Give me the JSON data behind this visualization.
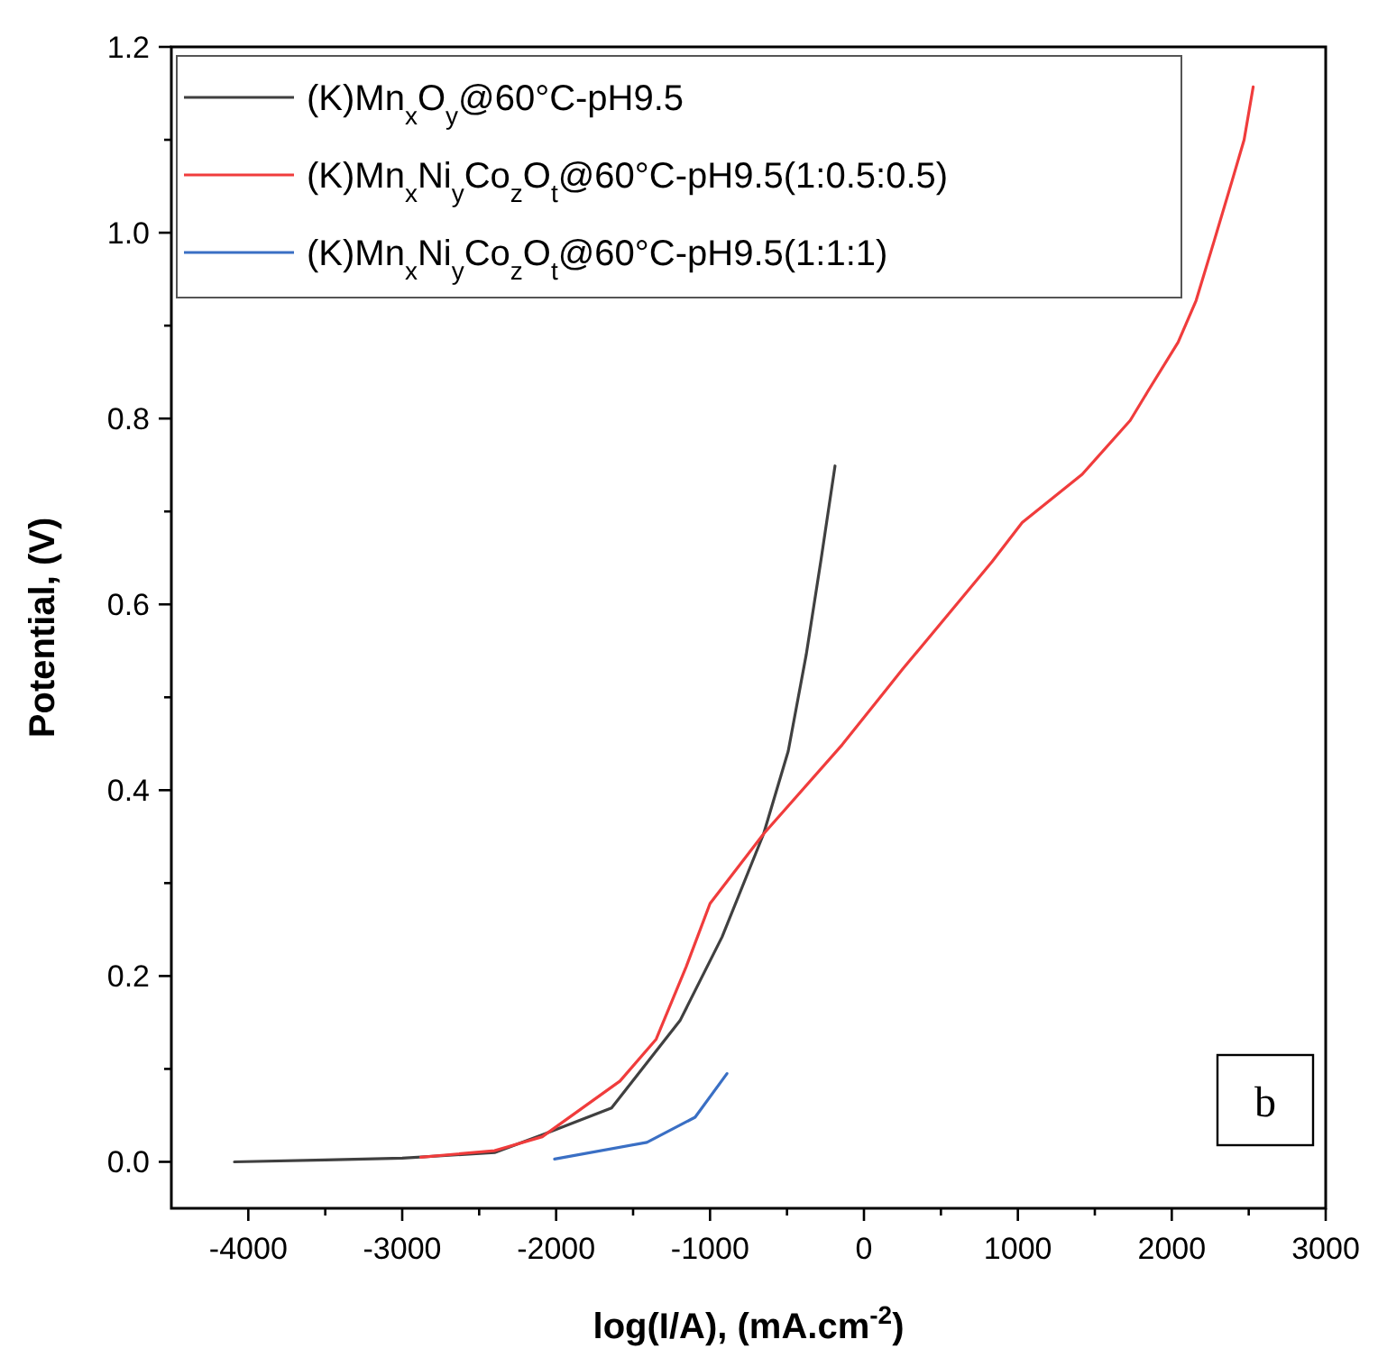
{
  "chart_data": {
    "type": "line",
    "xlabel": "log(I/A), (mA.cm$^{-2}$)",
    "ylabel": "Potential, (V)",
    "xlim": [
      -4500,
      3000
    ],
    "ylim": [
      -0.05,
      1.2
    ],
    "xticks": [
      -4000,
      {
        "value": -3500,
        "label": null
      },
      -3000,
      {
        "value": -2500,
        "label": null
      },
      -2000,
      {
        "value": -1500,
        "label": null
      },
      -1000,
      {
        "value": -500,
        "label": null
      },
      0,
      {
        "value": 500,
        "label": null
      },
      1000,
      {
        "value": 1500,
        "label": null
      },
      2000,
      {
        "value": 2500,
        "label": null
      },
      3000
    ],
    "yticks": [
      {
        "value": 0,
        "label": "0.0"
      },
      {
        "value": 0.1,
        "label": null
      },
      0.2,
      {
        "value": 0.3,
        "label": null
      },
      0.4,
      {
        "value": 0.5,
        "label": null
      },
      0.6,
      {
        "value": 0.7,
        "label": null
      },
      0.8,
      {
        "value": 0.9,
        "label": null
      },
      {
        "value": 1,
        "label": "1.0"
      },
      {
        "value": 1.1,
        "label": null
      },
      1.2
    ],
    "grid": false,
    "legend": "top left",
    "line_style": "solid",
    "marker": "none",
    "annotations": [
      "b"
    ],
    "series": [
      {
        "name": "(K)Mn$_{x}$O$_{y}$@60°C-pH9.5",
        "color": "#404040",
        "x": [
          -4090,
          -3500,
          -3000,
          -2400,
          -2090,
          -1640,
          -1195,
          -922,
          -652,
          -492,
          -375,
          -278,
          -188
        ],
        "values": [
          0,
          0.002,
          0.004,
          0.01,
          0.029,
          0.058,
          0.152,
          0.242,
          0.353,
          0.442,
          0.546,
          0.649,
          0.749
        ]
      },
      {
        "name": "(K)Mn$_{x}$Ni$_{y}$Co$_{z}$O$_{t}$@60°C-pH9.5(1:0.5:0.5)",
        "color": "#f03c3c",
        "x": [
          -2880,
          -2400,
          -2090,
          -1585,
          -1350,
          -1155,
          -1000,
          -652,
          -141,
          250,
          833,
          1028,
          1418,
          1730,
          1847,
          2041,
          2158,
          2275,
          2392,
          2470,
          2529
        ],
        "values": [
          0.005,
          0.012,
          0.027,
          0.087,
          0.132,
          0.21,
          0.278,
          0.353,
          0.449,
          0.53,
          0.646,
          0.688,
          0.74,
          0.798,
          0.83,
          0.882,
          0.927,
          0.991,
          1.056,
          1.1,
          1.157
        ]
      },
      {
        "name": "(K)Mn$_{x}$Ni$_{y}$Co$_{z}$O$_{t}$@60°C-pH9.5(1:1:1)",
        "color": "#3a6fc4",
        "x": [
          -2010,
          -1410,
          -1097,
          -890
        ],
        "values": [
          0.003,
          0.021,
          0.048,
          0.095
        ]
      }
    ]
  }
}
